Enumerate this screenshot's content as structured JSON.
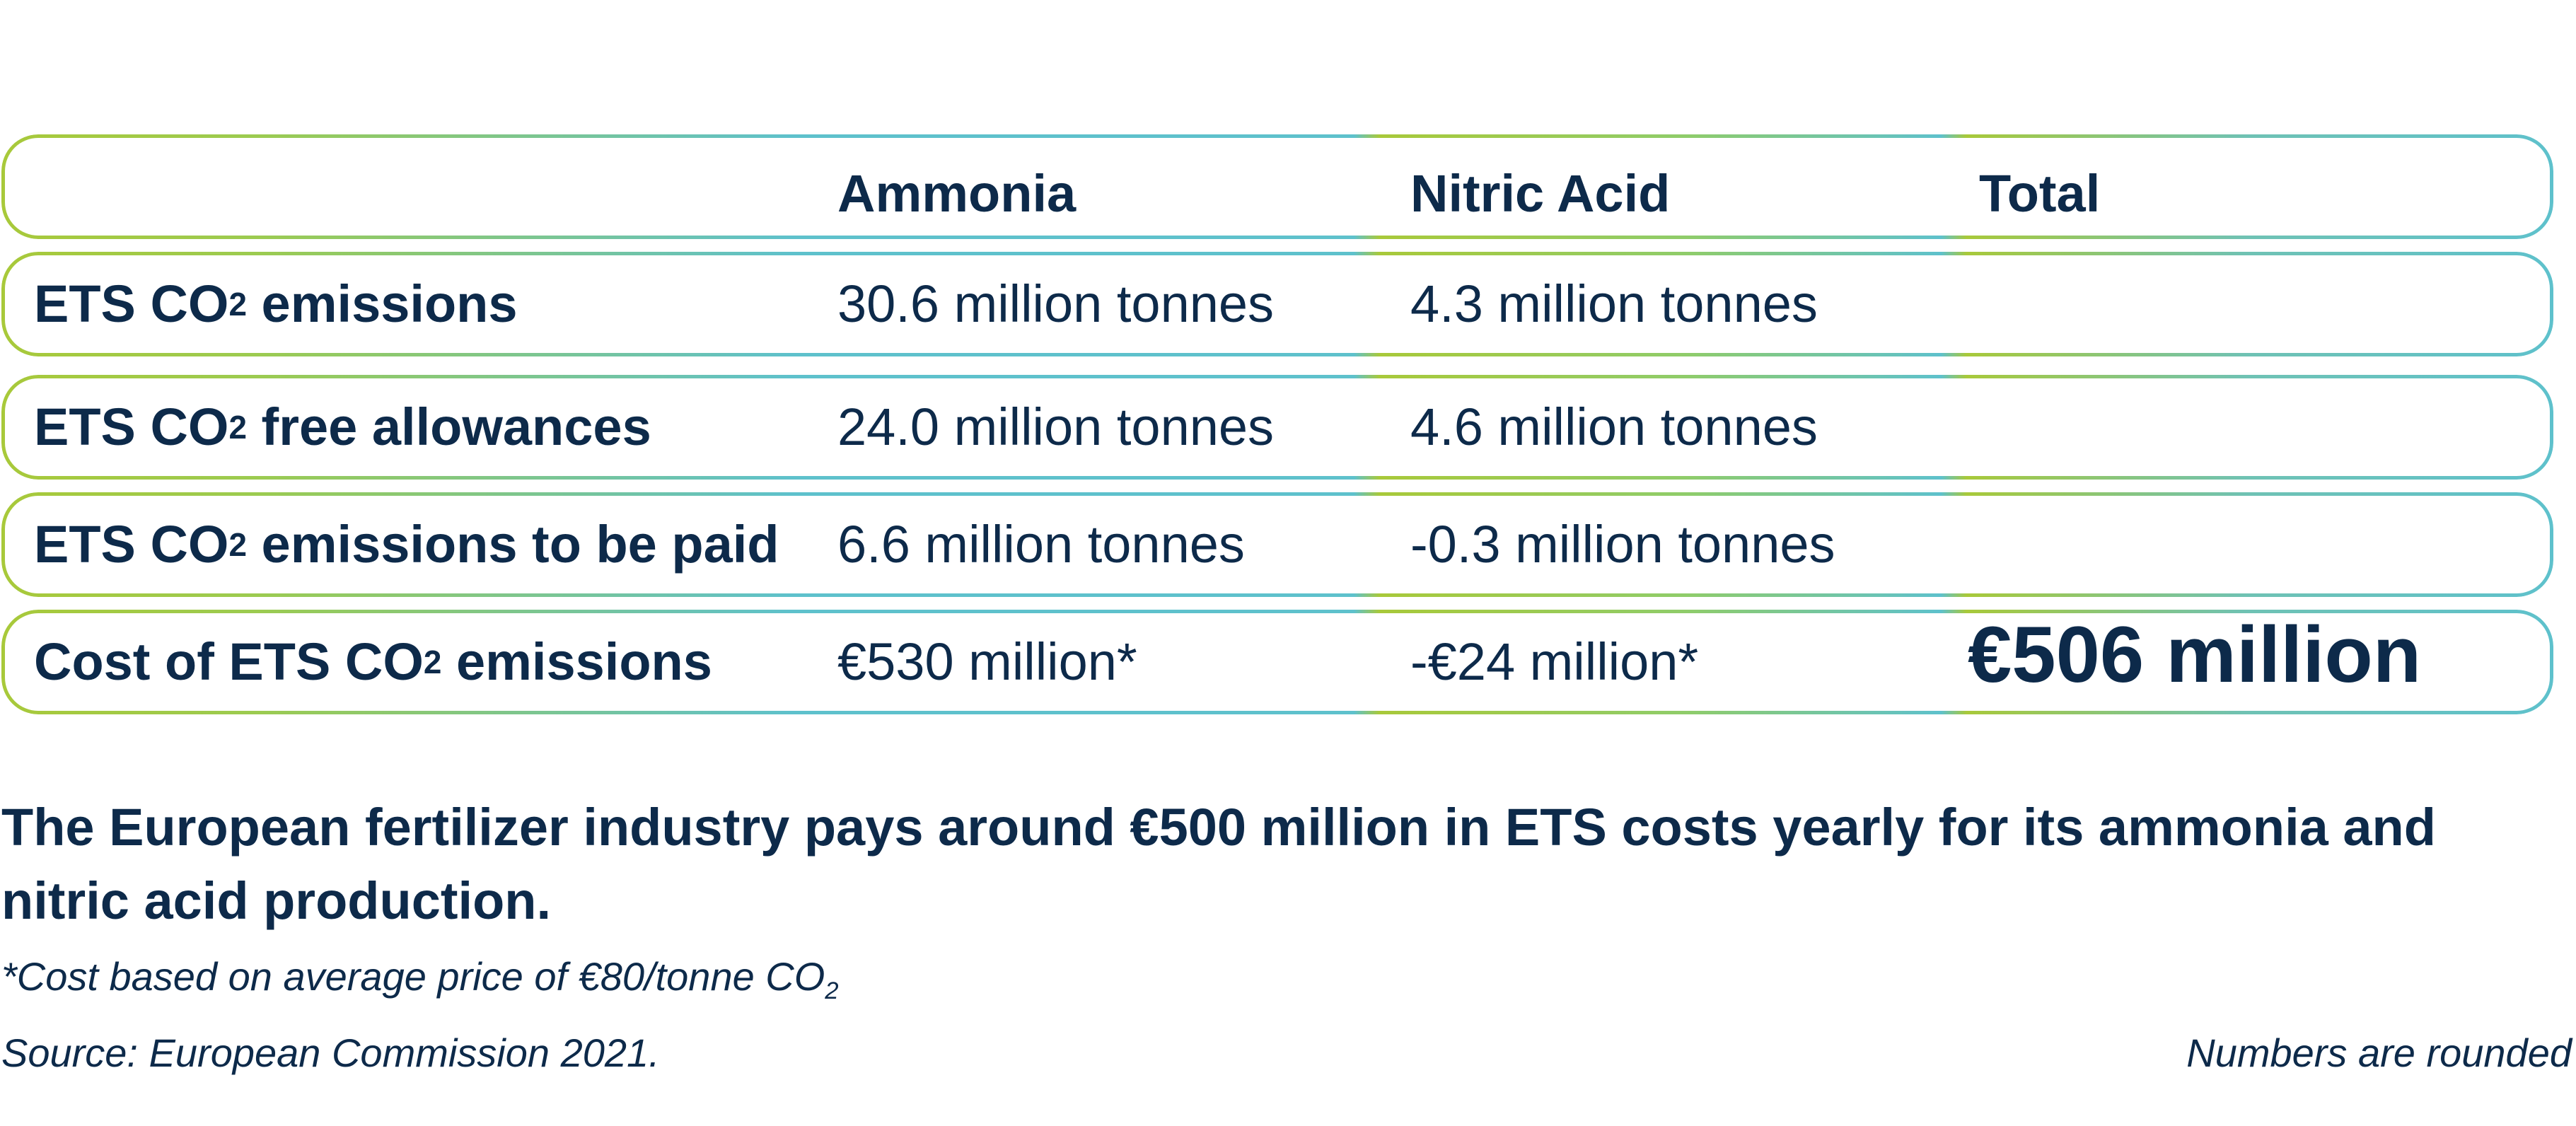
{
  "table": {
    "header": [
      "",
      "Ammonia",
      "Nitric Acid",
      "Total"
    ],
    "rows": [
      {
        "label_pre": "ETS CO",
        "label_sub": "2",
        "label_post": " emissions",
        "ammonia": "30.6 million tonnes",
        "nitric": "4.3 million tonnes",
        "total": ""
      },
      {
        "label_pre": "ETS CO",
        "label_sub": "2",
        "label_post": " free allowances",
        "ammonia": "24.0 million tonnes",
        "nitric": "4.6 million tonnes",
        "total": ""
      },
      {
        "label_pre": "ETS CO",
        "label_sub": "2",
        "label_post": " emissions to be paid",
        "ammonia": "6.6 million tonnes",
        "nitric": "-0.3 million tonnes",
        "total": ""
      },
      {
        "label_pre": "Cost of ETS CO",
        "label_sub": "2",
        "label_post": " emissions",
        "ammonia": "€530 million*",
        "nitric": "-€24 million*",
        "total": "€506 million"
      }
    ]
  },
  "summary": "The European fertilizer industry pays around €500 million in ETS costs yearly for its ammonia and nitric acid production.",
  "footnote_pre": "*Cost based on average price of €80/tonne CO",
  "footnote_sub": "2",
  "source": "Source: European Commission 2021.",
  "rounding_note": "Numbers are rounded",
  "colors": {
    "text": "#0d2a4a",
    "border_green": "#a8c93a",
    "border_teal": "#5ec1cc"
  }
}
